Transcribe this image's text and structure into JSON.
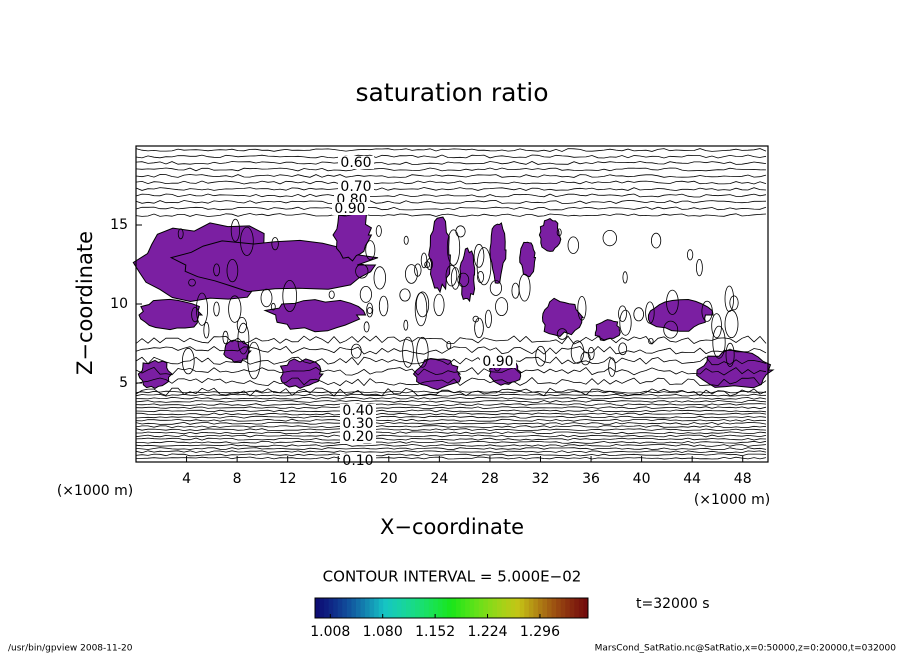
{
  "chart_data": {
    "type": "contour",
    "title": "saturation ratio",
    "x_label": "X−coordinate",
    "y_label": "Z−coordinate",
    "x_unit": "(×1000 m)",
    "y_unit": "(×1000 m)",
    "xlim": [
      0,
      50
    ],
    "xticks": [
      4,
      8,
      12,
      16,
      20,
      24,
      28,
      32,
      36,
      40,
      44,
      48
    ],
    "ylim": [
      0,
      20
    ],
    "yticks": [
      5,
      10,
      15
    ],
    "contour_labels": [
      "0.60",
      "0.70",
      "0.80",
      "0.90",
      "0.90",
      "0.40",
      "0.30",
      "0.20",
      "0.10"
    ],
    "fill_color": "#7b1fa2",
    "contour_interval": "CONTOUR INTERVAL = 5.000E−02",
    "time_label": "t=32000 s",
    "colorbar": {
      "clim": [
        0.987,
        1.362
      ],
      "ticks": [
        1.008,
        {
          "value": 1.08,
          "label": "1.080"
        },
        1.152,
        1.224,
        1.296
      ]
    },
    "footer_left": "/usr/bin/gpview   2008-11-20",
    "footer_right": "MarsCond_SatRatio.nc@SatRatio,x=0:50000,z=0:20000,t=032000"
  }
}
